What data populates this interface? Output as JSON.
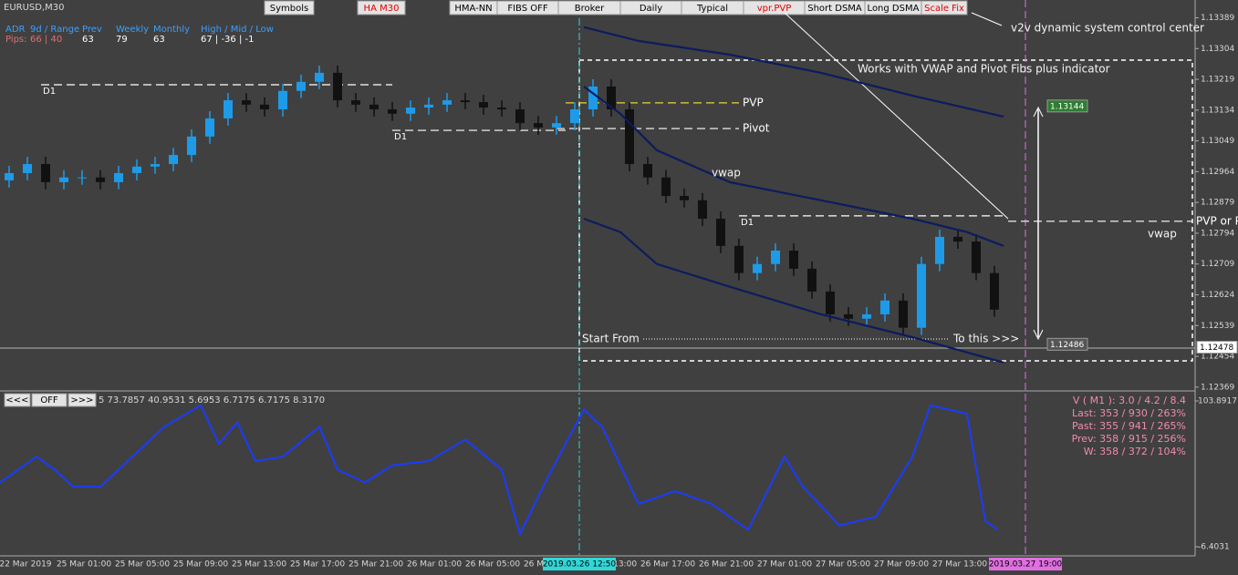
{
  "header": {
    "symbol": "EURUSD,M30"
  },
  "toolbar": [
    "Symbols",
    "HA M30",
    "HMA-NN",
    "FIBS OFF",
    "Broker",
    "Daily",
    "Typical",
    "vpr.PVP",
    "Short DSMA",
    "Long DSMA",
    "Scale Fix"
  ],
  "info_panel": {
    "labels": [
      "ADR",
      "9d / Range",
      "Prev",
      "Weekly",
      "Monthly",
      "High / Mid / Low"
    ],
    "pips": [
      "Pips:",
      "66 | 40",
      "63",
      "79",
      "63",
      "67 | -36 | -1"
    ]
  },
  "annotations": {
    "control_center": "v2v dynamic system control center",
    "works_with": "Works with VWAP and Pivot Fibs plus indicator",
    "vwap_right": "vwap",
    "start_from": "Start From",
    "to_this": "To this >>>"
  },
  "chart_data": [
    {
      "type": "candlestick",
      "up_color": "#1e9be8",
      "down_color": "#111111",
      "open": [
        1.1294,
        1.1296,
        1.12985,
        1.12935,
        1.12948,
        1.12948,
        1.12935,
        1.1296,
        1.12978,
        1.12985,
        1.1301,
        1.13061,
        1.13111,
        1.13161,
        1.13149,
        1.13136,
        1.13187,
        1.13212,
        1.13237,
        1.13161,
        1.13149,
        1.13136,
        1.13124,
        1.13141,
        1.13149,
        1.13161,
        1.13156,
        1.13141,
        1.13136,
        1.13098,
        1.13086,
        1.13098,
        1.13136,
        1.13199,
        1.13136,
        1.12985,
        1.12948,
        1.12897,
        1.12885,
        1.12834,
        1.12759,
        1.12684,
        1.12709,
        1.12746,
        1.12696,
        1.12633,
        1.1257,
        1.12558,
        1.1257,
        1.12608,
        1.12533,
        1.12709,
        1.12784,
        1.12771,
        1.12684
      ],
      "high": [
        1.1298,
        1.13005,
        1.13005,
        1.12968,
        1.12968,
        1.12968,
        1.1298,
        1.12998,
        1.13005,
        1.1303,
        1.13081,
        1.13131,
        1.13181,
        1.13181,
        1.13169,
        1.13207,
        1.13232,
        1.13257,
        1.13257,
        1.13181,
        1.13169,
        1.13156,
        1.13161,
        1.13169,
        1.13181,
        1.13181,
        1.13176,
        1.13161,
        1.13156,
        1.13118,
        1.13118,
        1.13156,
        1.13219,
        1.13219,
        1.13156,
        1.13005,
        1.12968,
        1.12917,
        1.12905,
        1.12854,
        1.12779,
        1.12729,
        1.12766,
        1.12766,
        1.12716,
        1.12653,
        1.1259,
        1.1259,
        1.12628,
        1.12628,
        1.12729,
        1.12804,
        1.12804,
        1.12791,
        1.12704
      ],
      "low": [
        1.1292,
        1.1294,
        1.12915,
        1.12915,
        1.12928,
        1.12915,
        1.12915,
        1.1294,
        1.12958,
        1.12965,
        1.1299,
        1.13041,
        1.13091,
        1.13129,
        1.13116,
        1.13116,
        1.13167,
        1.13192,
        1.13141,
        1.13129,
        1.13116,
        1.13104,
        1.13104,
        1.13121,
        1.13129,
        1.13136,
        1.13121,
        1.13116,
        1.13078,
        1.13066,
        1.13066,
        1.13078,
        1.13116,
        1.13116,
        1.12965,
        1.12928,
        1.12877,
        1.12865,
        1.12814,
        1.12739,
        1.12664,
        1.12664,
        1.12689,
        1.12676,
        1.12613,
        1.1255,
        1.12538,
        1.12538,
        1.1255,
        1.12513,
        1.12513,
        1.12689,
        1.12751,
        1.12664,
        1.12563
      ],
      "close": [
        1.1296,
        1.12985,
        1.12935,
        1.12948,
        1.12948,
        1.12935,
        1.1296,
        1.12978,
        1.12985,
        1.1301,
        1.13061,
        1.13111,
        1.13161,
        1.13149,
        1.13136,
        1.13187,
        1.13212,
        1.13237,
        1.13161,
        1.13149,
        1.13136,
        1.13124,
        1.13141,
        1.13149,
        1.13161,
        1.13156,
        1.13141,
        1.13136,
        1.13098,
        1.13086,
        1.13098,
        1.13136,
        1.13199,
        1.13136,
        1.12985,
        1.12948,
        1.12897,
        1.12885,
        1.12834,
        1.12759,
        1.12684,
        1.12709,
        1.12746,
        1.12696,
        1.12633,
        1.1257,
        1.12558,
        1.1257,
        1.12608,
        1.12533,
        1.12709,
        1.12784,
        1.12771,
        1.12684,
        1.12583
      ],
      "xlim": [
        -0.5,
        65
      ],
      "ylim": [
        1.12361,
        1.13438
      ],
      "yticks": [
        1.13389,
        1.13304,
        1.13219,
        1.13134,
        1.13049,
        1.12964,
        1.12879,
        1.12794,
        1.12709,
        1.12624,
        1.12539,
        1.12454,
        1.12369
      ],
      "overlays": [
        {
          "color": "#0d1b5e",
          "x": [
            31.5,
            34.5,
            39.5,
            44.5,
            49.5,
            54.5
          ],
          "values": [
            1.13363,
            1.13325,
            1.13287,
            1.13237,
            1.13174,
            1.13116
          ]
        },
        {
          "name": "vwap",
          "color": "#0d1b5e",
          "x": [
            31.5,
            33.5,
            35.5,
            39.5,
            44.5,
            49.5,
            52.5,
            54.5
          ],
          "values": [
            1.13199,
            1.13124,
            1.13023,
            1.12935,
            1.12885,
            1.12834,
            1.12797,
            1.12759
          ]
        },
        {
          "color": "#0d1b5e",
          "x": [
            31.5,
            33.5,
            35.5,
            39.5,
            44.5,
            49.5,
            54.5
          ],
          "values": [
            1.12834,
            1.12797,
            1.12709,
            1.12646,
            1.1257,
            1.12507,
            1.12437
          ]
        }
      ],
      "levels": [
        {
          "label": "PVP",
          "value": 1.13154,
          "color": "#e8d23a",
          "x": [
            30.5,
            40
          ]
        },
        {
          "label": "Pivot",
          "value": 1.13083,
          "color": "#ffffff",
          "x": [
            30,
            40
          ]
        },
        {
          "label": "PVP or POC",
          "value": 1.12827,
          "color": "#ffffff",
          "x": [
            54.75,
            64.85
          ]
        }
      ],
      "day_levels": [
        {
          "label": "D1",
          "value": 1.13204,
          "color": "#ffffff",
          "x": [
            1.75,
            21
          ]
        },
        {
          "label": "D1",
          "value": 1.13078,
          "color": "#ffffff",
          "x": [
            21,
            30.5
          ]
        },
        {
          "label": "D1",
          "value": 1.12842,
          "color": "#ffffff",
          "x": [
            40,
            54.5
          ]
        }
      ],
      "price_tags": [
        {
          "value": 1.13144,
          "color": "#2e7d32"
        },
        {
          "value": 1.12486,
          "color": "#555555"
        },
        {
          "value": 1.12478,
          "color": "#ffffff"
        }
      ]
    },
    {
      "type": "line",
      "ylim": [
        -6.4031,
        103.8917
      ],
      "yticks": [
        103.8917,
        -6.4031
      ],
      "series": [
        {
          "color": "#1a3cff",
          "x": [
            -0.5,
            1.5,
            2.5,
            3.5,
            5,
            7,
            8.5,
            10.5,
            11.5,
            12.5,
            13.5,
            15,
            17,
            18,
            19.5,
            21,
            23,
            25,
            27,
            28,
            29.5,
            31.5,
            32.5,
            34.5,
            36.5,
            38.5,
            40.5,
            42.5,
            43.5,
            45.5,
            47.5,
            49.5,
            50.5,
            52.5,
            53.5,
            54.2
          ],
          "values": [
            42.2,
            61.7,
            51.9,
            39.0,
            39.0,
            64.9,
            84.4,
            100.6,
            71.4,
            87.7,
            58.4,
            61.7,
            84.4,
            51.9,
            42.2,
            55.2,
            58.4,
            74.7,
            51.9,
            3.2,
            45.5,
            97.4,
            84.4,
            26.0,
            35.7,
            26.0,
            6.5,
            61.7,
            39.0,
            9.7,
            16.2,
            61.7,
            100.6,
            94.2,
            13.0,
            6.5
          ]
        }
      ]
    }
  ],
  "osc_panel": {
    "buttons": [
      "<<<",
      "OFF",
      ">>>"
    ],
    "readout": "5 73.7857 40.9531 5.6953 6.7175 6.7175 8.3170",
    "stats": [
      "V ( M1 ): 3.0 / 4.2 / 8.4",
      "Last: 353 / 930 / 263%",
      "Past: 355 / 941 / 265%",
      "Prev: 358 / 915 / 256%",
      "W: 358 / 372 / 104%"
    ]
  },
  "time_axis": {
    "labels": [
      "22 Mar 2019",
      "25 Mar 01:00",
      "25 Mar 05:00",
      "25 Mar 09:00",
      "25 Mar 13:00",
      "25 Mar 17:00",
      "25 Mar 21:00",
      "26 Mar 01:00",
      "26 Mar 05:00",
      "26 Mar 09:00",
      "26 Mar 13:00",
      "26 Mar 17:00",
      "26 Mar 21:00",
      "27 Mar 01:00",
      "27 Mar 05:00",
      "27 Mar 09:00",
      "27 Mar 13:00"
    ],
    "cursor_labels": [
      "2019.03.26 12:50",
      "2019.03.27 19:00"
    ]
  }
}
